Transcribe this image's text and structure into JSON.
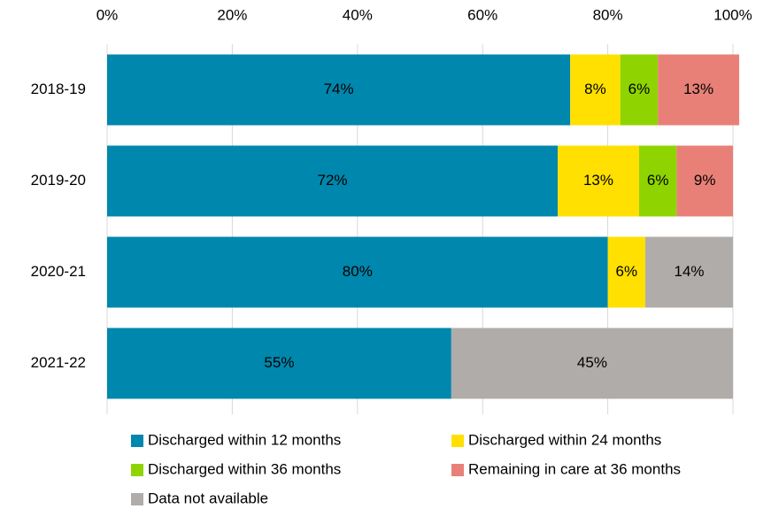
{
  "chart_data": {
    "type": "stacked-bar-horizontal",
    "categories": [
      "2018-19",
      "2019-20",
      "2020-21",
      "2021-22"
    ],
    "series": [
      {
        "name": "Discharged within 12 months",
        "color": "#0087ad",
        "values": [
          74,
          72,
          80,
          55
        ],
        "value_labels": [
          "74%",
          "72%",
          "80%",
          "55%"
        ]
      },
      {
        "name": "Discharged within 24 months",
        "color": "#ffe000",
        "values": [
          8,
          13,
          6,
          null
        ],
        "value_labels": [
          "8%",
          "13%",
          "6%",
          null
        ]
      },
      {
        "name": "Discharged within 36 months",
        "color": "#8fd400",
        "values": [
          6,
          6,
          null,
          null
        ],
        "value_labels": [
          "6%",
          "6%",
          null,
          null
        ]
      },
      {
        "name": "Remaining in care at 36 months",
        "color": "#e88077",
        "values": [
          13,
          9,
          null,
          null
        ],
        "value_labels": [
          "13%",
          "9%",
          null,
          null
        ]
      },
      {
        "name": "Data not available",
        "color": "#b0acaa",
        "values": [
          null,
          null,
          14,
          45
        ],
        "value_labels": [
          null,
          null,
          "14%",
          "45%"
        ]
      }
    ],
    "xlim": [
      0,
      100
    ],
    "xticks": [
      {
        "value": 0,
        "label": "0%"
      },
      {
        "value": 20,
        "label": "20%"
      },
      {
        "value": 40,
        "label": "40%"
      },
      {
        "value": 60,
        "label": "60%"
      },
      {
        "value": 80,
        "label": "80%"
      },
      {
        "value": 100,
        "label": "100%"
      }
    ],
    "grid": true
  }
}
